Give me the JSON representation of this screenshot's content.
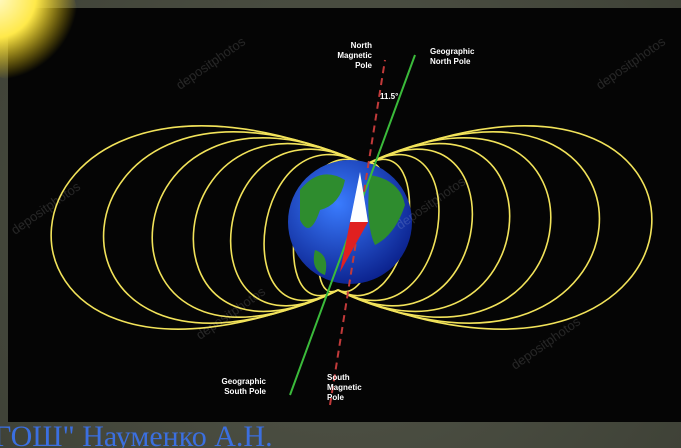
{
  "image": {
    "north_magnetic_pole": [
      "North",
      "Magnetic",
      "Pole"
    ],
    "geographic_north_pole": [
      "Geographic",
      "North Pole"
    ],
    "angle": "11.5°",
    "geographic_south_pole": [
      "Geographic",
      "South Pole"
    ],
    "south_magnetic_pole": [
      "South",
      "Magnetic",
      "Pole"
    ],
    "watermark": "depositphotos"
  },
  "footer": {
    "author": "ГОШ\" Науменко А.Н."
  }
}
